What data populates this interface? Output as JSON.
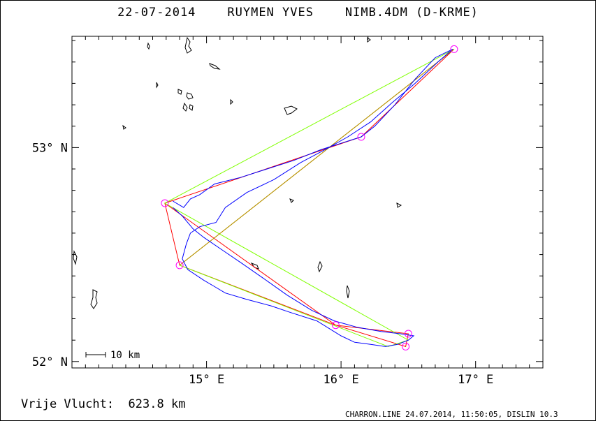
{
  "header": {
    "date": "22-07-2014",
    "pilot": "RUYMEN YVES",
    "glider": "NIMB.4DM (D-KRME)"
  },
  "footer": {
    "distance_label": "Vrije Vlucht:",
    "distance_value": "623.8 km",
    "credit": "CHARRON.LINE 24.07.2014, 11:50:05, DISLIN 10.3"
  },
  "scale_bar": {
    "label": "10 km",
    "length_km": 10
  },
  "colors": {
    "track": "#0000ff",
    "task_red": "#ff0000",
    "task_green": "#80ff00",
    "task_orange": "#c08000",
    "turnpoint": "#ff00ff",
    "terrain": "#000000"
  },
  "chart_data": {
    "type": "map",
    "x_axis": {
      "unit": "longitude",
      "range": [
        14.0,
        17.5
      ],
      "ticks": [
        {
          "value": 15,
          "label": "15° E"
        },
        {
          "value": 16,
          "label": "16° E"
        },
        {
          "value": 17,
          "label": "17° E"
        }
      ]
    },
    "y_axis": {
      "unit": "latitude",
      "range": [
        51.97,
        53.52
      ],
      "ticks": [
        {
          "value": 52,
          "label": "52° N"
        },
        {
          "value": 53,
          "label": "53° N"
        }
      ]
    },
    "grid": false,
    "turnpoints": [
      {
        "lon": 16.84,
        "lat": 53.46
      },
      {
        "lon": 16.15,
        "lat": 53.05
      },
      {
        "lon": 14.69,
        "lat": 52.74
      },
      {
        "lon": 14.8,
        "lat": 52.45
      },
      {
        "lon": 15.96,
        "lat": 52.17
      },
      {
        "lon": 16.48,
        "lat": 52.07
      },
      {
        "lon": 16.5,
        "lat": 52.13
      }
    ],
    "series": [
      {
        "style": "task_red",
        "points": [
          [
            16.84,
            53.46
          ],
          [
            16.15,
            53.05
          ],
          [
            14.69,
            52.74
          ],
          [
            14.8,
            52.45
          ],
          [
            15.96,
            52.17
          ],
          [
            16.48,
            52.07
          ],
          [
            16.5,
            52.13
          ],
          [
            15.96,
            52.17
          ],
          [
            14.69,
            52.74
          ]
        ]
      },
      {
        "style": "task_green",
        "points": [
          [
            14.69,
            52.74
          ],
          [
            16.84,
            53.46
          ],
          [
            14.8,
            52.45
          ],
          [
            16.35,
            52.07
          ],
          [
            16.5,
            52.1
          ],
          [
            14.69,
            52.74
          ]
        ]
      },
      {
        "style": "task_orange",
        "points": [
          [
            14.8,
            52.45
          ],
          [
            16.84,
            53.46
          ]
        ]
      },
      {
        "style": "track",
        "points": [
          [
            14.75,
            52.75
          ],
          [
            14.83,
            52.72
          ],
          [
            14.88,
            52.76
          ],
          [
            14.95,
            52.78
          ],
          [
            15.06,
            52.83
          ],
          [
            15.25,
            52.86
          ],
          [
            15.45,
            52.9
          ],
          [
            15.65,
            52.94
          ],
          [
            15.85,
            52.99
          ],
          [
            16.0,
            53.02
          ],
          [
            16.15,
            53.05
          ],
          [
            16.25,
            53.1
          ],
          [
            16.4,
            53.2
          ],
          [
            16.55,
            53.32
          ],
          [
            16.7,
            53.42
          ],
          [
            16.83,
            53.46
          ],
          [
            16.72,
            53.4
          ],
          [
            16.55,
            53.3
          ],
          [
            16.38,
            53.21
          ],
          [
            16.22,
            53.12
          ],
          [
            16.05,
            53.05
          ],
          [
            15.88,
            52.99
          ],
          [
            15.7,
            52.93
          ],
          [
            15.5,
            52.85
          ],
          [
            15.3,
            52.79
          ],
          [
            15.14,
            52.72
          ],
          [
            15.07,
            52.65
          ],
          [
            14.95,
            52.63
          ],
          [
            14.88,
            52.6
          ],
          [
            14.85,
            52.55
          ],
          [
            14.82,
            52.48
          ],
          [
            14.86,
            52.43
          ],
          [
            14.98,
            52.38
          ],
          [
            15.06,
            52.35
          ],
          [
            15.14,
            52.32
          ],
          [
            15.3,
            52.29
          ],
          [
            15.48,
            52.26
          ],
          [
            15.62,
            52.23
          ],
          [
            15.82,
            52.19
          ],
          [
            16.0,
            52.12
          ],
          [
            16.1,
            52.09
          ],
          [
            16.22,
            52.08
          ],
          [
            16.33,
            52.07
          ],
          [
            16.42,
            52.08
          ],
          [
            16.5,
            52.1
          ],
          [
            16.54,
            52.12
          ],
          [
            16.44,
            52.13
          ],
          [
            16.3,
            52.14
          ],
          [
            16.12,
            52.16
          ],
          [
            15.95,
            52.19
          ],
          [
            15.78,
            52.24
          ],
          [
            15.6,
            52.31
          ],
          [
            15.42,
            52.39
          ],
          [
            15.26,
            52.46
          ],
          [
            15.12,
            52.52
          ],
          [
            14.98,
            52.58
          ],
          [
            14.9,
            52.62
          ],
          [
            14.82,
            52.68
          ],
          [
            14.75,
            52.72
          ]
        ]
      }
    ]
  }
}
